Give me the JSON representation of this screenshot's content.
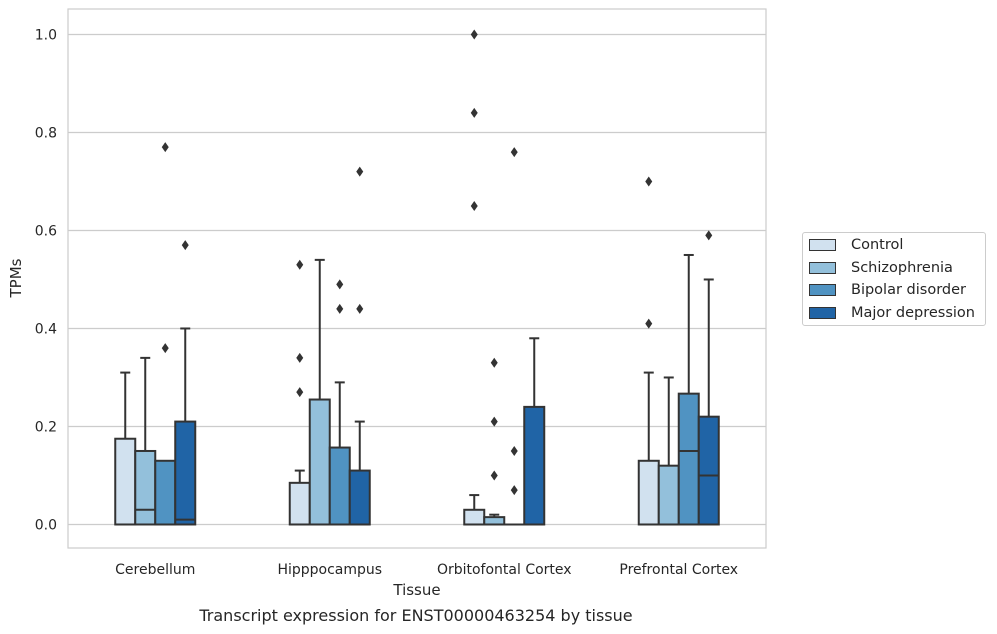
{
  "chart_data": {
    "type": "box",
    "xlabel": "Tissue",
    "ylabel": "TPMs",
    "ylim": [
      -0.048,
      1.052
    ],
    "yticks": [
      0.0,
      0.2,
      0.4,
      0.6,
      0.8,
      1.0
    ],
    "ytick_labels": [
      "0.0",
      "0.2",
      "0.4",
      "0.6",
      "0.8",
      "1.0"
    ],
    "grid": "horizontal",
    "legend_position": "right",
    "categories": [
      "Cerebellum",
      "Hipppocampus",
      "Orbitofontal Cortex",
      "Prefrontal Cortex"
    ],
    "series": [
      {
        "name": "Control",
        "color": "#d1e1ef",
        "boxes": [
          {
            "q1": 0.0,
            "median": 0.0,
            "q3": 0.175,
            "whisker_low": 0.0,
            "whisker_high": 0.31,
            "outliers": []
          },
          {
            "q1": 0.0,
            "median": 0.0,
            "q3": 0.085,
            "whisker_low": 0.0,
            "whisker_high": 0.11,
            "outliers": [
              0.27,
              0.34,
              0.53
            ]
          },
          {
            "q1": 0.0,
            "median": 0.0,
            "q3": 0.03,
            "whisker_low": 0.0,
            "whisker_high": 0.06,
            "outliers": [
              0.65,
              0.84,
              1.0
            ]
          },
          {
            "q1": 0.0,
            "median": 0.0,
            "q3": 0.13,
            "whisker_low": 0.0,
            "whisker_high": 0.31,
            "outliers": [
              0.41,
              0.7
            ]
          }
        ]
      },
      {
        "name": "Schizophrenia",
        "color": "#93c0db",
        "boxes": [
          {
            "q1": 0.0,
            "median": 0.03,
            "q3": 0.15,
            "whisker_low": 0.0,
            "whisker_high": 0.34,
            "outliers": []
          },
          {
            "q1": 0.0,
            "median": 0.0,
            "q3": 0.255,
            "whisker_low": 0.0,
            "whisker_high": 0.54,
            "outliers": []
          },
          {
            "q1": 0.0,
            "median": 0.0,
            "q3": 0.015,
            "whisker_low": 0.0,
            "whisker_high": 0.02,
            "outliers": [
              0.1,
              0.21,
              0.33
            ]
          },
          {
            "q1": 0.0,
            "median": 0.0,
            "q3": 0.12,
            "whisker_low": 0.0,
            "whisker_high": 0.3,
            "outliers": []
          }
        ]
      },
      {
        "name": "Bipolar disorder",
        "color": "#5093c2",
        "boxes": [
          {
            "q1": 0.0,
            "median": 0.0,
            "q3": 0.13,
            "whisker_low": 0.0,
            "whisker_high": 0.13,
            "outliers": [
              0.36,
              0.77
            ]
          },
          {
            "q1": 0.0,
            "median": 0.0,
            "q3": 0.157,
            "whisker_low": 0.0,
            "whisker_high": 0.29,
            "outliers": [
              0.44,
              0.49
            ]
          },
          {
            "q1": 0.0,
            "median": 0.0,
            "q3": 0.0,
            "whisker_low": 0.0,
            "whisker_high": 0.0,
            "outliers": [
              0.07,
              0.15,
              0.76
            ]
          },
          {
            "q1": 0.0,
            "median": 0.15,
            "q3": 0.267,
            "whisker_low": 0.0,
            "whisker_high": 0.55,
            "outliers": []
          }
        ]
      },
      {
        "name": "Major depression",
        "color": "#2064a6",
        "boxes": [
          {
            "q1": 0.0,
            "median": 0.01,
            "q3": 0.21,
            "whisker_low": 0.0,
            "whisker_high": 0.4,
            "outliers": [
              0.57
            ]
          },
          {
            "q1": 0.0,
            "median": 0.0,
            "q3": 0.11,
            "whisker_low": 0.0,
            "whisker_high": 0.21,
            "outliers": [
              0.44,
              0.72
            ]
          },
          {
            "q1": 0.0,
            "median": 0.0,
            "q3": 0.24,
            "whisker_low": 0.0,
            "whisker_high": 0.38,
            "outliers": []
          },
          {
            "q1": 0.0,
            "median": 0.1,
            "q3": 0.22,
            "whisker_low": 0.0,
            "whisker_high": 0.5,
            "outliers": [
              0.59
            ]
          }
        ]
      }
    ]
  },
  "caption": "Transcript expression for ENST00000463254 by tissue"
}
